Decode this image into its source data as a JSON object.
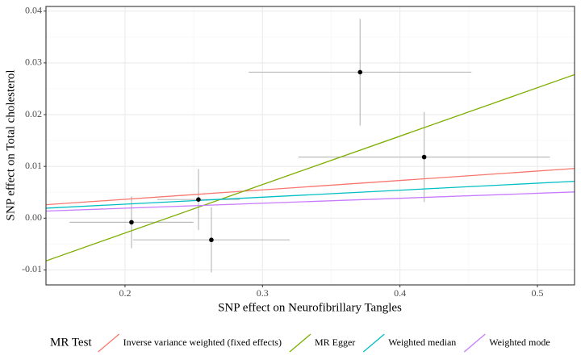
{
  "chart_data": {
    "type": "scatter",
    "x_label": "SNP effect on Neurofibrillary Tangles",
    "y_label": "SNP effect on Total cholesterol",
    "xlim": [
      0.1425,
      0.527
    ],
    "ylim": [
      -0.0129,
      0.0409
    ],
    "xticks": [
      0.2,
      0.3,
      0.4,
      0.5
    ],
    "yticks": [
      -0.01,
      {
        "value": 0,
        "label": "0.00"
      },
      0.01,
      0.02,
      0.03,
      0.04
    ],
    "grid": true,
    "minor_grid": true,
    "points": {
      "color": "#000000",
      "error_color": "#bbbbbb",
      "x": [
        0.2047,
        0.2534,
        0.2628,
        0.371,
        0.4176
      ],
      "y": [
        -0.0008,
        0.0036,
        -0.0042,
        0.0282,
        0.0118
      ],
      "xerr": [
        0.045,
        0.03,
        0.057,
        0.081,
        0.0915
      ],
      "yerr": [
        0.005,
        0.0059,
        0.0063,
        0.0103,
        0.0087
      ]
    },
    "legend_title": "MR Test",
    "legend_position": "bottom",
    "series": [
      {
        "name": "Inverse variance weighted (fixed effects)",
        "color": "#F8766D",
        "slope": 0.0182,
        "intercept": 0
      },
      {
        "name": "MR Egger",
        "color": "#7CAE00",
        "slope": 0.0936,
        "intercept": -0.0216
      },
      {
        "name": "Weighted median",
        "color": "#00BFC4",
        "slope": 0.0135,
        "intercept": 0
      },
      {
        "name": "Weighted mode",
        "color": "#C77CFF",
        "slope": 0.0096,
        "intercept": 0
      }
    ]
  }
}
